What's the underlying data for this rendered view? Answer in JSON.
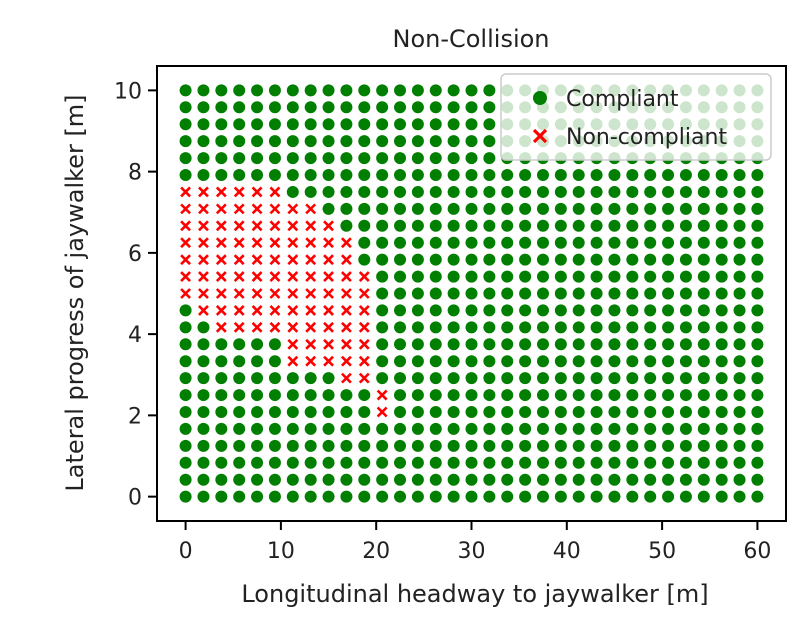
{
  "chart_data": {
    "type": "scatter",
    "title": "Non-Collision",
    "xlabel": "Longitudinal headway to jaywalker [m]",
    "ylabel": "Lateral progress of jaywalker [m]",
    "xlim": [
      -3,
      63
    ],
    "ylim": [
      -0.6,
      10.6
    ],
    "xticks": [
      0,
      10,
      20,
      30,
      40,
      50,
      60
    ],
    "yticks": [
      0,
      2,
      4,
      6,
      8,
      10
    ],
    "grid": false,
    "legend_position": "top-right",
    "grid_points": {
      "x_start": 0,
      "x_end": 60,
      "x_count": 33,
      "y_start": 0,
      "y_end": 10,
      "y_count": 25
    },
    "series": [
      {
        "name": "Compliant",
        "marker": "circle",
        "color": "#007f00",
        "description_rule": "all grid points not in the Non-compliant set"
      },
      {
        "name": "Non-compliant",
        "marker": "x",
        "color": "#ff0000",
        "points_by_x": [
          {
            "x": 0,
            "y_min": 5.0,
            "y_max": 7.5
          },
          {
            "x": 1.875,
            "y_min": 4.6,
            "y_max": 7.5
          },
          {
            "x": 3.75,
            "y_min": 4.2,
            "y_max": 7.5
          },
          {
            "x": 5.625,
            "y_min": 4.2,
            "y_max": 7.5
          },
          {
            "x": 7.5,
            "y_min": 4.2,
            "y_max": 7.5
          },
          {
            "x": 9.375,
            "y_min": 4.2,
            "y_max": 7.5
          },
          {
            "x": 11.25,
            "y_min": 3.3,
            "y_max": 7.1
          },
          {
            "x": 13.125,
            "y_min": 3.3,
            "y_max": 7.1
          },
          {
            "x": 15,
            "y_min": 3.3,
            "y_max": 6.7
          },
          {
            "x": 16.875,
            "y_min": 2.9,
            "y_max": 6.3
          },
          {
            "x": 18.75,
            "y_min": 2.9,
            "y_max": 5.4
          },
          {
            "x": 20.625,
            "y_min": 2.1,
            "y_max": 2.5
          }
        ]
      }
    ]
  }
}
